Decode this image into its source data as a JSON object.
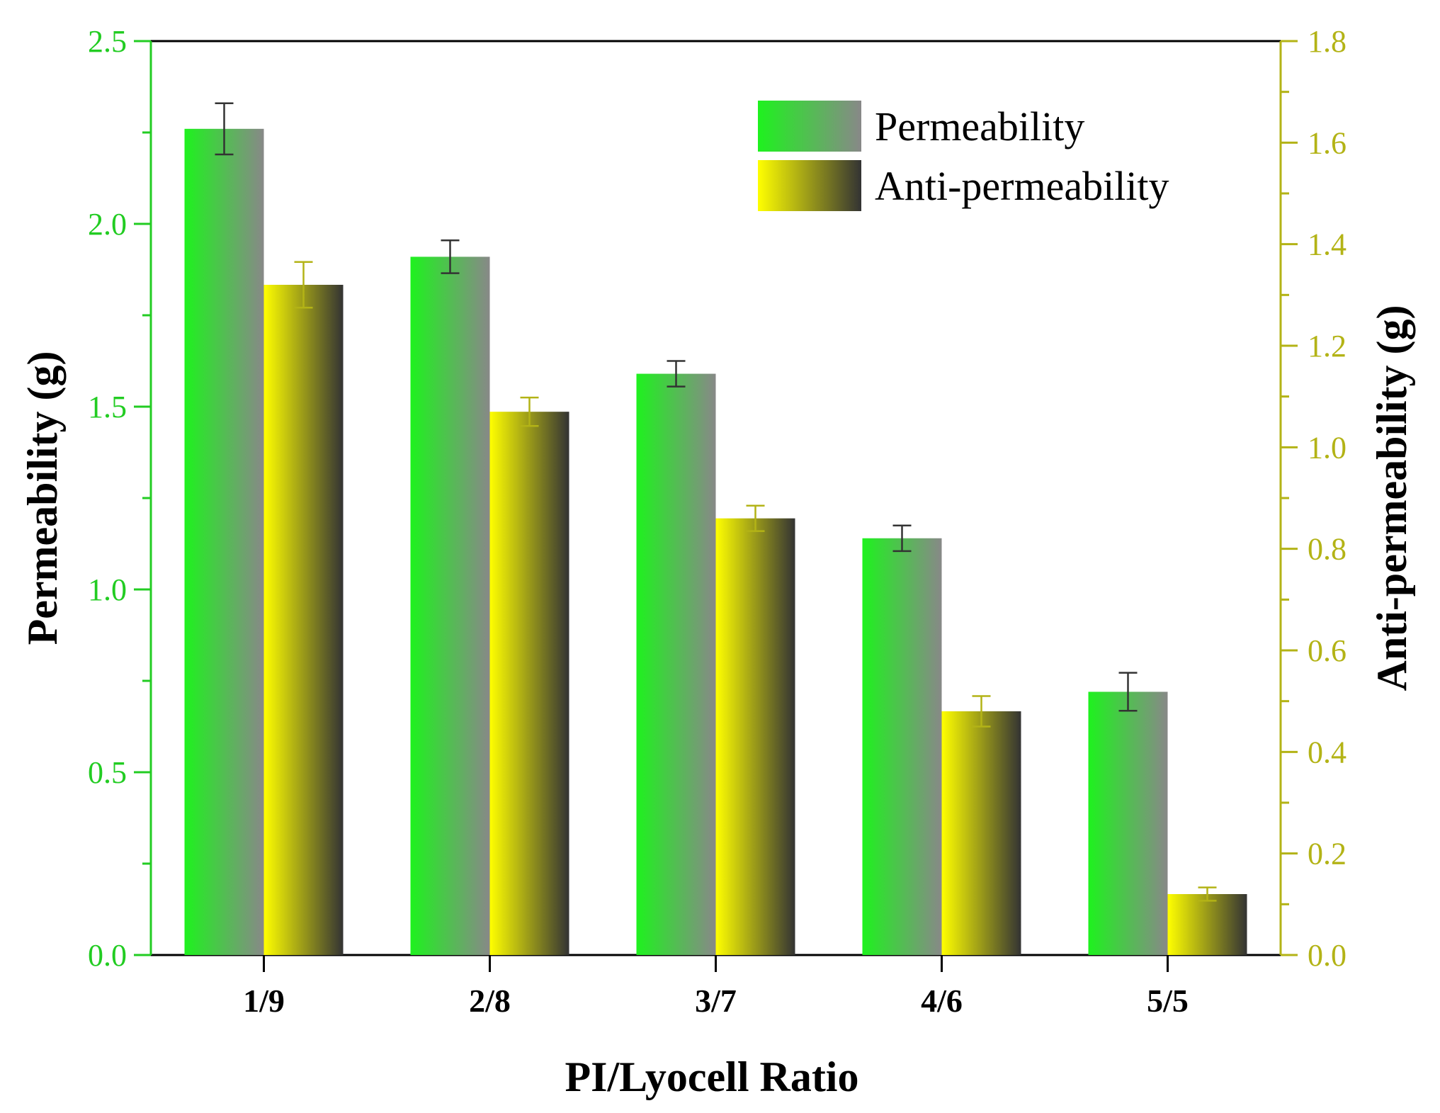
{
  "chart_data": {
    "type": "bar",
    "title": "",
    "xlabel": "PI/Lyocell Ratio",
    "categories": [
      "1/9",
      "2/8",
      "3/7",
      "4/6",
      "5/5"
    ],
    "series": [
      {
        "name": "Permeability",
        "axis": "left",
        "values": [
          2.26,
          1.91,
          1.59,
          1.14,
          0.72
        ],
        "errors": [
          0.07,
          0.045,
          0.035,
          0.035,
          0.052
        ],
        "color_from": "#1ef21e",
        "color_to": "#888888",
        "errorbar_color": "#333333"
      },
      {
        "name": "Anti-permeability",
        "axis": "right",
        "values": [
          1.32,
          1.07,
          0.86,
          0.48,
          0.12
        ],
        "errors": [
          0.045,
          0.028,
          0.025,
          0.03,
          0.013
        ],
        "color_from": "#ffff00",
        "color_to": "#333333",
        "errorbar_color": "#b3b316"
      }
    ],
    "y_left": {
      "label": "Permeability (g)",
      "lim": [
        0,
        2.5
      ],
      "ticks": [
        "0.0",
        "0.5",
        "1.0",
        "1.5",
        "2.0",
        "2.5"
      ],
      "color": "#22cc22"
    },
    "y_right": {
      "label": "Anti-permeability (g)",
      "lim": [
        0,
        1.8
      ],
      "ticks": [
        "0.0",
        "0.2",
        "0.4",
        "0.6",
        "0.8",
        "1.0",
        "1.2",
        "1.4",
        "1.6",
        "1.8"
      ],
      "color": "#b3b316"
    },
    "legend": {
      "position": "top-right",
      "entries": [
        "Permeability",
        "Anti-permeability"
      ]
    },
    "grid": false
  }
}
